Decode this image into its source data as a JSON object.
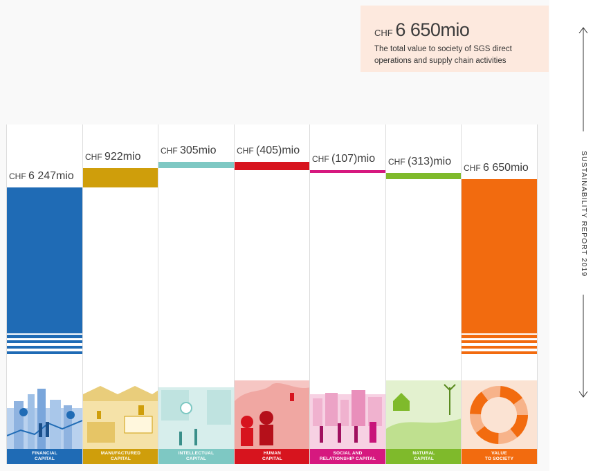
{
  "summary": {
    "currency": "CHF",
    "amount": "6 650mio",
    "description_line1": "The total value to society of SGS direct",
    "description_line2": "operations and supply chain activities"
  },
  "side_label": "SUSTAINABILITY REPORT 2019",
  "chart_data": {
    "type": "bar",
    "unit": "CHF mio",
    "categories": [
      "FINANCIAL CAPITAL",
      "MANUFACTURED CAPITAL",
      "INTELLECTUAL CAPITAL",
      "HUMAN CAPITAL",
      "SOCIAL AND RELATIONSHIP CAPITAL",
      "NATURAL CAPITAL",
      "VALUE TO SOCIETY"
    ],
    "values": [
      6247,
      922,
      305,
      -405,
      -107,
      -313,
      6650
    ],
    "value_labels": [
      "6 247mio",
      "922mio",
      "305mio",
      "(405)mio",
      "(107)mio",
      "(313)mio",
      "6 650mio"
    ],
    "colors": [
      "#1f6bb5",
      "#cf9e0b",
      "#7ec8c3",
      "#d7141e",
      "#d6187f",
      "#7fba2b",
      "#f26b0f"
    ],
    "chart_kind": "waterfall"
  },
  "captions": [
    {
      "line1": "FINANCIAL",
      "line2": "CAPITAL"
    },
    {
      "line1": "MANUFACTURED",
      "line2": "CAPITAL"
    },
    {
      "line1": "INTELLECTUAL",
      "line2": "CAPITAL"
    },
    {
      "line1": "HUMAN",
      "line2": "CAPITAL"
    },
    {
      "line1": "SOCIAL AND",
      "line2": "RELATIONSHIP CAPITAL"
    },
    {
      "line1": "NATURAL",
      "line2": "CAPITAL"
    },
    {
      "line1": "VALUE",
      "line2": "TO SOCIETY"
    }
  ],
  "currency": "CHF",
  "illustration_icons": [
    "finance-city-icon",
    "factory-icon",
    "innovation-lab-icon",
    "workers-icon",
    "community-icon",
    "landscape-wind-icon",
    "society-circle-icon"
  ]
}
